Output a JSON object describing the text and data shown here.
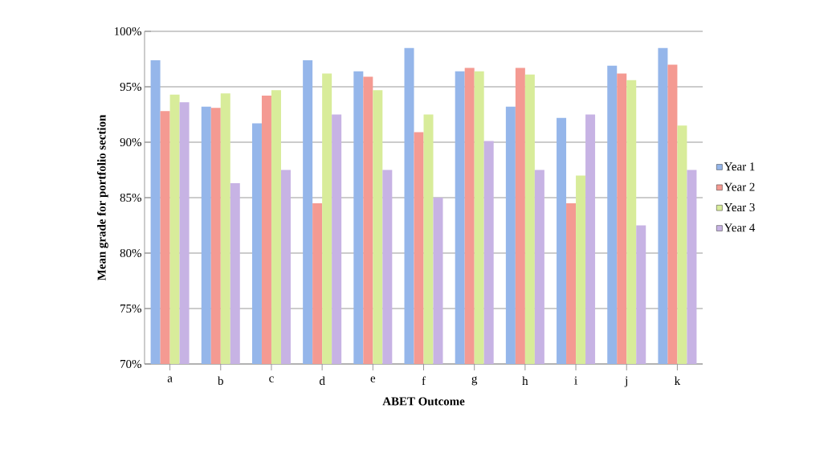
{
  "chart_data": {
    "type": "bar",
    "xlabel": "ABET Outcome",
    "ylabel": "Mean grade for portfolio section",
    "categories": [
      "a",
      "b",
      "c",
      "d",
      "e",
      "f",
      "g",
      "h",
      "i",
      "j",
      "k"
    ],
    "series": [
      {
        "name": "Year 1",
        "color": "#95b6ea",
        "values": [
          97.4,
          93.2,
          91.7,
          97.4,
          96.4,
          98.5,
          96.4,
          93.2,
          92.2,
          96.9,
          98.5
        ]
      },
      {
        "name": "Year 2",
        "color": "#f49a92",
        "values": [
          92.8,
          93.1,
          94.2,
          84.5,
          95.9,
          90.9,
          96.7,
          96.7,
          84.5,
          96.2,
          97.0
        ]
      },
      {
        "name": "Year 3",
        "color": "#d8ec9a",
        "values": [
          94.3,
          94.4,
          94.7,
          96.2,
          94.7,
          92.5,
          96.4,
          96.1,
          87.0,
          95.6,
          91.5
        ]
      },
      {
        "name": "Year 4",
        "color": "#c7b3e4",
        "values": [
          93.6,
          86.3,
          87.5,
          92.5,
          87.5,
          85.0,
          90.1,
          87.5,
          92.5,
          82.5,
          87.5
        ]
      }
    ],
    "ylim": [
      70,
      100
    ],
    "yticks": [
      {
        "value": 70,
        "label": "70%"
      },
      {
        "value": 75,
        "label": "75%"
      },
      {
        "value": 80,
        "label": "80%"
      },
      {
        "value": 85,
        "label": "85%"
      },
      {
        "value": 90,
        "label": "90%"
      },
      {
        "value": 95,
        "label": "95%"
      },
      {
        "value": 100,
        "label": "100%"
      }
    ],
    "grid": "y",
    "legend": "right"
  }
}
